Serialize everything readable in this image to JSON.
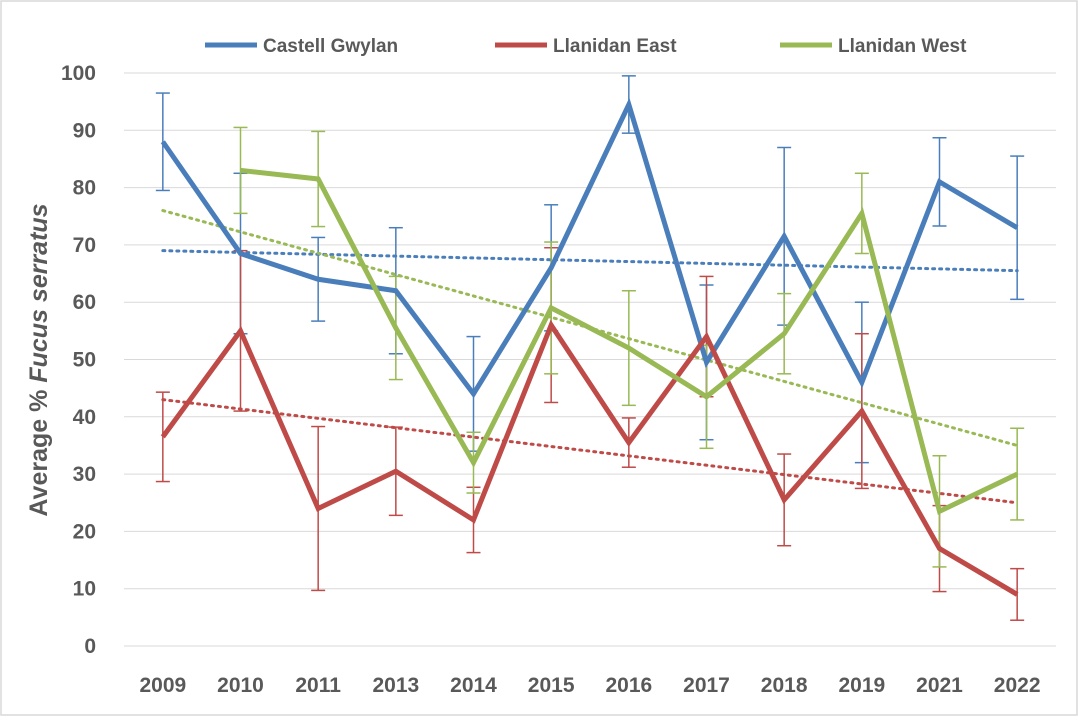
{
  "chart_data": {
    "type": "line",
    "ylabel": [
      "Average %",
      "Fucus serratus"
    ],
    "categories": [
      "2009",
      "2010",
      "2011",
      "2013",
      "2014",
      "2015",
      "2016",
      "2017",
      "2018",
      "2019",
      "2021",
      "2022"
    ],
    "ylim": [
      0,
      100
    ],
    "yticks": [
      0,
      10,
      20,
      30,
      40,
      50,
      60,
      70,
      80,
      90,
      100
    ],
    "grid": true,
    "legend": "top",
    "series": [
      {
        "name": "Castell Gwylan",
        "color": "#4a7ebb",
        "values": [
          88,
          68.5,
          64,
          62,
          44,
          66,
          94.5,
          49.5,
          71.5,
          46,
          81,
          73
        ],
        "errors": [
          8.5,
          14,
          7.3,
          11,
          10,
          11,
          5,
          13.5,
          15.5,
          14,
          7.7,
          12.5
        ],
        "trendline": [
          69,
          65.5
        ]
      },
      {
        "name": "Llanidan East",
        "color": "#be4b48",
        "values": [
          36.5,
          55,
          24,
          30.5,
          22,
          56,
          35.5,
          54,
          25.5,
          41,
          17,
          9
        ],
        "errors": [
          7.8,
          14,
          14.3,
          7.7,
          5.7,
          13.5,
          4.3,
          10.5,
          8,
          13.5,
          7.5,
          4.5
        ],
        "trendline": [
          43,
          25
        ]
      },
      {
        "name": "Llanidan West",
        "color": "#98b954",
        "values": [
          null,
          83,
          81.5,
          55.5,
          32,
          59,
          52,
          43.5,
          54.5,
          75.5,
          23.5,
          30
        ],
        "errors": [
          null,
          7.5,
          8.3,
          9,
          5.3,
          11.5,
          10,
          9,
          7,
          7,
          9.7,
          8
        ],
        "trendline": [
          76,
          35
        ]
      }
    ]
  }
}
